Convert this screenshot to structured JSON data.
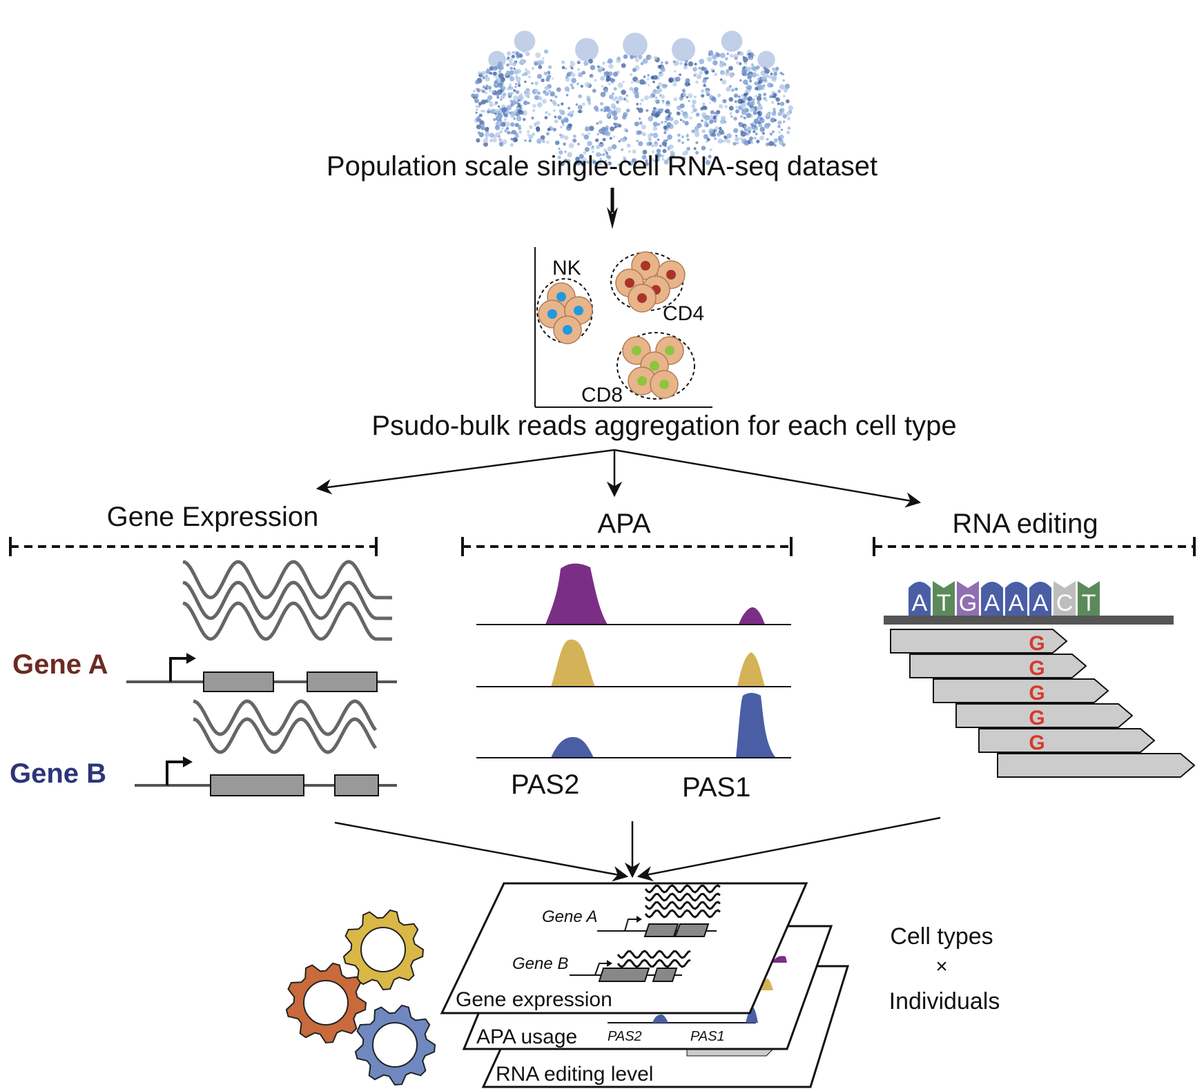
{
  "titles": {
    "dataset": "Population scale single-cell RNA-seq dataset",
    "aggregation": "Psudo-bulk reads aggregation for each cell type"
  },
  "cell_types": {
    "nk": "NK",
    "cd4": "CD4",
    "cd8": "CD8"
  },
  "sections": {
    "gene_expression": "Gene Expression",
    "apa": "APA",
    "rna_editing": "RNA editing"
  },
  "genes": {
    "gene_a": "Gene A",
    "gene_b": "Gene B"
  },
  "apa_sites": {
    "pas2": "PAS2",
    "pas1": "PAS1"
  },
  "sequence": [
    "A",
    "T",
    "G",
    "A",
    "A",
    "A",
    "C",
    "T"
  ],
  "edited_base": "G",
  "stack": {
    "gene_a": "Gene A",
    "gene_b": "Gene B",
    "layer_gene_expression": "Gene expression",
    "layer_apa": "APA usage",
    "layer_rna_editing": "RNA editing level",
    "pas2": "PAS2",
    "pas1": "PAS1"
  },
  "matrix_label": {
    "line1": "Cell types",
    "line2": "×",
    "line3": "Individuals"
  },
  "colors": {
    "gene_a": "#6b2b22",
    "gene_b": "#2e3478",
    "apa_purple": "#7b2e86",
    "apa_gold": "#d4b257",
    "apa_blue": "#4a5ea6",
    "nk_nucleus": "#1e9be0",
    "cd4_nucleus": "#a8342a",
    "cd8_nucleus": "#8cc63f",
    "cell_body": "#e8b48a",
    "base_A": "#4a5ea6",
    "base_T": "#5b8a5a",
    "base_G": "#8e6fb0",
    "base_C": "#bdbdbd",
    "edit_red": "#d63a2a",
    "gear_yellow": "#d9b847",
    "gear_orange": "#c86a3c",
    "gear_blue": "#6f88c0"
  }
}
